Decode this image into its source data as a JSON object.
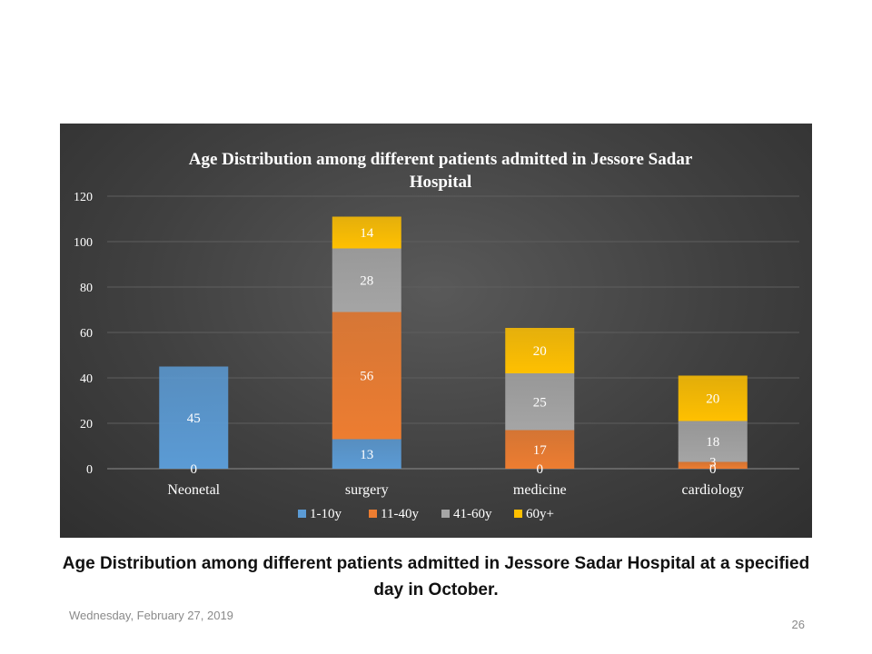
{
  "slide": {
    "caption": "Age Distribution among different patients admitted in Jessore Sadar Hospital at a specified day in October.",
    "date": "Wednesday, February 27, 2019",
    "page_number": "26"
  },
  "chart_data": {
    "type": "bar",
    "stacked": true,
    "title_line1": "Age Distribution  among different patients admitted in Jessore Sadar",
    "title_line2": "Hospital",
    "categories": [
      "Neonetal",
      "surgery",
      "medicine",
      "cardiology"
    ],
    "series": [
      {
        "name": "1-10y",
        "color": "#5b9bd5",
        "values": [
          45,
          13,
          0,
          0
        ]
      },
      {
        "name": "11-40y",
        "color": "#ed7d31",
        "values": [
          0,
          56,
          17,
          3
        ]
      },
      {
        "name": "41-60y",
        "color": "#a5a5a5",
        "values": [
          0,
          28,
          25,
          18
        ]
      },
      {
        "name": "60y+",
        "color": "#ffc000",
        "values": [
          0,
          14,
          20,
          20
        ]
      }
    ],
    "data_labels": [
      [
        {
          "series": 0,
          "text": "45"
        },
        {
          "series": 1,
          "text": "0"
        }
      ],
      [
        {
          "series": 0,
          "text": "13"
        },
        {
          "series": 1,
          "text": "56"
        },
        {
          "series": 2,
          "text": "28"
        },
        {
          "series": 3,
          "text": "14"
        }
      ],
      [
        {
          "series": 0,
          "text": "0"
        },
        {
          "series": 1,
          "text": "17"
        },
        {
          "series": 2,
          "text": "25"
        },
        {
          "series": 3,
          "text": "20"
        }
      ],
      [
        {
          "series": 0,
          "text": "0"
        },
        {
          "series": 1,
          "text": "3"
        },
        {
          "series": 2,
          "text": "18"
        },
        {
          "series": 3,
          "text": "20"
        }
      ]
    ],
    "yticks": [
      "0",
      "20",
      "40",
      "60",
      "80",
      "100",
      "120"
    ],
    "ylim": [
      0,
      120
    ],
    "grid": true,
    "legend": "bottom"
  }
}
